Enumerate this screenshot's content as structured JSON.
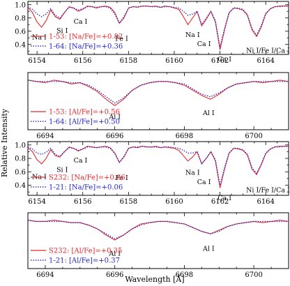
{
  "figure": {
    "ylabel": "Relative Intensity",
    "xlabel": "Wavelength [Å]"
  },
  "colors": {
    "red": "#e8282d",
    "blue": "#2424c8",
    "axis": "#000000"
  },
  "chart_data": [
    {
      "type": "line",
      "xlim": [
        6153.6,
        6165.0
      ],
      "ylim": [
        0.25,
        1.05
      ],
      "xticks": [
        6154,
        6156,
        6158,
        6160,
        6162,
        6164
      ],
      "yticks": [
        0.4,
        0.6,
        0.8,
        1.0
      ],
      "line_labels": [
        {
          "text": "Na I",
          "x": 6154.1,
          "y": 0.58
        },
        {
          "text": "Si I",
          "x": 6155.1,
          "y": 0.68
        },
        {
          "text": "Ca I",
          "x": 6155.9,
          "y": 0.82
        },
        {
          "text": "Fe I",
          "x": 6157.7,
          "y": 0.56
        },
        {
          "text": "Na I",
          "x": 6160.8,
          "y": 0.62
        },
        {
          "text": "Ca I",
          "x": 6161.3,
          "y": 0.48
        },
        {
          "text": "Ca I",
          "x": 6162.2,
          "y": 0.25
        },
        {
          "text": "Ni I/Fe I/Ca I",
          "x": 6164.1,
          "y": 0.38
        }
      ],
      "legend": [
        {
          "label": "1-53: [Na/Fe]=+0.82",
          "color": "red",
          "style": "solid"
        },
        {
          "label": "1-64: [Na/Fe]=+0.36",
          "color": "blue",
          "style": "dotted"
        }
      ],
      "series": [
        {
          "color": "red",
          "style": "solid",
          "x": [
            6153.6,
            6153.8,
            6154.0,
            6154.2,
            6154.4,
            6154.6,
            6154.8,
            6155.0,
            6155.2,
            6155.4,
            6155.6,
            6155.8,
            6156.0,
            6156.2,
            6156.4,
            6156.6,
            6156.8,
            6157.0,
            6157.2,
            6157.4,
            6157.6,
            6157.8,
            6158.0,
            6158.2,
            6158.4,
            6158.6,
            6158.8,
            6159.0,
            6159.2,
            6159.4,
            6159.6,
            6159.8,
            6160.0,
            6160.2,
            6160.4,
            6160.6,
            6160.8,
            6161.0,
            6161.2,
            6161.4,
            6161.6,
            6161.8,
            6162.0,
            6162.2,
            6162.4,
            6162.6,
            6162.8,
            6163.0,
            6163.2,
            6163.4,
            6163.6,
            6163.8,
            6164.0,
            6164.2,
            6164.4,
            6164.6,
            6164.8,
            6165.0
          ],
          "y": [
            0.96,
            0.88,
            0.74,
            0.66,
            0.76,
            0.92,
            0.82,
            0.78,
            0.88,
            0.97,
            0.95,
            0.9,
            0.93,
            0.98,
            0.97,
            0.95,
            0.97,
            0.98,
            0.96,
            0.88,
            0.72,
            0.8,
            0.95,
            0.97,
            0.96,
            0.98,
            0.98,
            0.97,
            0.98,
            0.96,
            0.98,
            0.97,
            0.95,
            0.93,
            0.82,
            0.7,
            0.8,
            0.9,
            0.68,
            0.78,
            0.9,
            0.74,
            0.32,
            0.62,
            0.88,
            0.95,
            0.94,
            0.92,
            0.84,
            0.62,
            0.52,
            0.66,
            0.86,
            0.94,
            0.97,
            0.98,
            0.98,
            0.98
          ]
        },
        {
          "color": "blue",
          "style": "dotted",
          "x": [
            6153.6,
            6153.8,
            6154.0,
            6154.2,
            6154.4,
            6154.6,
            6154.8,
            6155.0,
            6155.2,
            6155.4,
            6155.6,
            6155.8,
            6156.0,
            6156.2,
            6156.4,
            6156.6,
            6156.8,
            6157.0,
            6157.2,
            6157.4,
            6157.6,
            6157.8,
            6158.0,
            6158.2,
            6158.4,
            6158.6,
            6158.8,
            6159.0,
            6159.2,
            6159.4,
            6159.6,
            6159.8,
            6160.0,
            6160.2,
            6160.4,
            6160.6,
            6160.8,
            6161.0,
            6161.2,
            6161.4,
            6161.6,
            6161.8,
            6162.0,
            6162.2,
            6162.4,
            6162.6,
            6162.8,
            6163.0,
            6163.2,
            6163.4,
            6163.6,
            6163.8,
            6164.0,
            6164.2,
            6164.4,
            6164.6,
            6164.8,
            6165.0
          ],
          "y": [
            0.97,
            0.93,
            0.86,
            0.82,
            0.86,
            0.94,
            0.84,
            0.8,
            0.88,
            0.96,
            0.95,
            0.92,
            0.94,
            0.97,
            0.97,
            0.96,
            0.97,
            0.97,
            0.95,
            0.86,
            0.72,
            0.82,
            0.95,
            0.97,
            0.97,
            0.98,
            0.98,
            0.97,
            0.97,
            0.96,
            0.97,
            0.97,
            0.96,
            0.95,
            0.9,
            0.84,
            0.86,
            0.9,
            0.7,
            0.8,
            0.9,
            0.76,
            0.36,
            0.64,
            0.88,
            0.95,
            0.95,
            0.93,
            0.85,
            0.64,
            0.54,
            0.68,
            0.87,
            0.94,
            0.97,
            0.97,
            0.98,
            0.98
          ]
        }
      ]
    },
    {
      "type": "line",
      "xlim": [
        6693.5,
        6701.0
      ],
      "ylim": [
        0.6,
        1.05
      ],
      "xticks": [
        6694,
        6696,
        6698,
        6700
      ],
      "yticks": [],
      "line_labels": [
        {
          "text": "Al I",
          "x": 6696.0,
          "y": 0.74
        },
        {
          "text": "Al I",
          "x": 6698.7,
          "y": 0.77
        }
      ],
      "legend": [
        {
          "label": "1-53: [Al/Fe]=+0.56",
          "color": "red",
          "style": "solid"
        },
        {
          "label": "1-64: [Al/Fe]=+0.50",
          "color": "blue",
          "style": "dotted"
        }
      ],
      "series": [
        {
          "color": "red",
          "style": "solid",
          "x": [
            6693.5,
            6693.75,
            6694.0,
            6694.25,
            6694.5,
            6694.75,
            6695.0,
            6695.25,
            6695.5,
            6695.75,
            6696.0,
            6696.25,
            6696.5,
            6696.75,
            6697.0,
            6697.25,
            6697.5,
            6697.75,
            6698.0,
            6698.25,
            6698.5,
            6698.75,
            6699.0,
            6699.25,
            6699.5,
            6699.75,
            6700.0,
            6700.25,
            6700.5,
            6700.75,
            6701.0
          ],
          "y": [
            0.99,
            0.98,
            0.97,
            0.99,
            0.98,
            0.96,
            0.97,
            0.94,
            0.9,
            0.84,
            0.79,
            0.84,
            0.91,
            0.95,
            0.97,
            0.98,
            0.98,
            0.97,
            0.95,
            0.91,
            0.87,
            0.84,
            0.88,
            0.93,
            0.96,
            0.97,
            0.98,
            0.97,
            0.98,
            0.99,
            0.98
          ]
        },
        {
          "color": "blue",
          "style": "dotted",
          "x": [
            6693.5,
            6693.75,
            6694.0,
            6694.25,
            6694.5,
            6694.75,
            6695.0,
            6695.25,
            6695.5,
            6695.75,
            6696.0,
            6696.25,
            6696.5,
            6696.75,
            6697.0,
            6697.25,
            6697.5,
            6697.75,
            6698.0,
            6698.25,
            6698.5,
            6698.75,
            6699.0,
            6699.25,
            6699.5,
            6699.75,
            6700.0,
            6700.25,
            6700.5,
            6700.75,
            6701.0
          ],
          "y": [
            0.99,
            0.98,
            0.98,
            0.98,
            0.98,
            0.97,
            0.97,
            0.95,
            0.91,
            0.86,
            0.81,
            0.85,
            0.91,
            0.95,
            0.97,
            0.98,
            0.98,
            0.97,
            0.96,
            0.92,
            0.88,
            0.86,
            0.89,
            0.93,
            0.96,
            0.97,
            0.98,
            0.98,
            0.98,
            0.98,
            0.98
          ]
        }
      ]
    },
    {
      "type": "line",
      "xlim": [
        6153.6,
        6165.0
      ],
      "ylim": [
        0.25,
        1.05
      ],
      "xticks": [
        6154,
        6156,
        6158,
        6160,
        6162,
        6164
      ],
      "yticks": [
        0.4,
        0.6,
        0.8,
        1.0
      ],
      "line_labels": [
        {
          "text": "Na I",
          "x": 6154.1,
          "y": 0.6
        },
        {
          "text": "Si I",
          "x": 6155.1,
          "y": 0.7
        },
        {
          "text": "Ca I",
          "x": 6155.9,
          "y": 0.84
        },
        {
          "text": "Fe I",
          "x": 6157.7,
          "y": 0.58
        },
        {
          "text": "Na I",
          "x": 6160.8,
          "y": 0.66
        },
        {
          "text": "Ca I",
          "x": 6161.3,
          "y": 0.52
        },
        {
          "text": "Ca I",
          "x": 6162.2,
          "y": 0.28
        },
        {
          "text": "Ni I/Fe I/Ca I",
          "x": 6164.1,
          "y": 0.4
        }
      ],
      "legend": [
        {
          "label": "S232: [Na/Fe]=+0.66",
          "color": "red",
          "style": "solid"
        },
        {
          "label": "1-21: [Na/Fe]=+0.06",
          "color": "blue",
          "style": "dotted"
        }
      ],
      "series": [
        {
          "color": "red",
          "style": "solid",
          "x": [
            6153.6,
            6153.8,
            6154.0,
            6154.2,
            6154.4,
            6154.6,
            6154.8,
            6155.0,
            6155.2,
            6155.4,
            6155.6,
            6155.8,
            6156.0,
            6156.2,
            6156.4,
            6156.6,
            6156.8,
            6157.0,
            6157.2,
            6157.4,
            6157.6,
            6157.8,
            6158.0,
            6158.2,
            6158.4,
            6158.6,
            6158.8,
            6159.0,
            6159.2,
            6159.4,
            6159.6,
            6159.8,
            6160.0,
            6160.2,
            6160.4,
            6160.6,
            6160.8,
            6161.0,
            6161.2,
            6161.4,
            6161.6,
            6161.8,
            6162.0,
            6162.2,
            6162.4,
            6162.6,
            6162.8,
            6163.0,
            6163.2,
            6163.4,
            6163.6,
            6163.8,
            6164.0,
            6164.2,
            6164.4,
            6164.6,
            6164.8,
            6165.0
          ],
          "y": [
            0.96,
            0.9,
            0.78,
            0.72,
            0.8,
            0.93,
            0.84,
            0.82,
            0.9,
            0.97,
            0.95,
            0.91,
            0.94,
            0.98,
            0.97,
            0.96,
            0.97,
            0.98,
            0.96,
            0.88,
            0.74,
            0.82,
            0.95,
            0.97,
            0.96,
            0.98,
            0.97,
            0.97,
            0.98,
            0.96,
            0.97,
            0.96,
            0.95,
            0.92,
            0.84,
            0.76,
            0.82,
            0.9,
            0.72,
            0.8,
            0.9,
            0.76,
            0.36,
            0.64,
            0.88,
            0.95,
            0.94,
            0.92,
            0.85,
            0.64,
            0.56,
            0.7,
            0.87,
            0.94,
            0.97,
            0.98,
            0.98,
            0.98
          ]
        },
        {
          "color": "blue",
          "style": "dotted",
          "x": [
            6153.6,
            6153.8,
            6154.0,
            6154.2,
            6154.4,
            6154.6,
            6154.8,
            6155.0,
            6155.2,
            6155.4,
            6155.6,
            6155.8,
            6156.0,
            6156.2,
            6156.4,
            6156.6,
            6156.8,
            6157.0,
            6157.2,
            6157.4,
            6157.6,
            6157.8,
            6158.0,
            6158.2,
            6158.4,
            6158.6,
            6158.8,
            6159.0,
            6159.2,
            6159.4,
            6159.6,
            6159.8,
            6160.0,
            6160.2,
            6160.4,
            6160.6,
            6160.8,
            6161.0,
            6161.2,
            6161.4,
            6161.6,
            6161.8,
            6162.0,
            6162.2,
            6162.4,
            6162.6,
            6162.8,
            6163.0,
            6163.2,
            6163.4,
            6163.6,
            6163.8,
            6164.0,
            6164.2,
            6164.4,
            6164.6,
            6164.8,
            6165.0
          ],
          "y": [
            0.97,
            0.94,
            0.88,
            0.86,
            0.89,
            0.95,
            0.86,
            0.83,
            0.9,
            0.96,
            0.95,
            0.92,
            0.94,
            0.97,
            0.97,
            0.96,
            0.97,
            0.97,
            0.95,
            0.87,
            0.74,
            0.83,
            0.95,
            0.97,
            0.97,
            0.98,
            0.97,
            0.97,
            0.97,
            0.96,
            0.97,
            0.97,
            0.96,
            0.95,
            0.92,
            0.88,
            0.88,
            0.9,
            0.72,
            0.8,
            0.9,
            0.78,
            0.4,
            0.66,
            0.88,
            0.95,
            0.95,
            0.93,
            0.86,
            0.66,
            0.58,
            0.71,
            0.88,
            0.94,
            0.97,
            0.97,
            0.98,
            0.98
          ]
        }
      ]
    },
    {
      "type": "line",
      "xlim": [
        6693.5,
        6701.0
      ],
      "ylim": [
        0.6,
        1.05
      ],
      "xticks": [
        6694,
        6696,
        6698,
        6700
      ],
      "yticks": [],
      "line_labels": [
        {
          "text": "Al I",
          "x": 6696.0,
          "y": 0.76
        },
        {
          "text": "Al I",
          "x": 6698.7,
          "y": 0.8
        }
      ],
      "legend": [
        {
          "label": "S232: [Al/Fe]=+0.35",
          "color": "red",
          "style": "solid"
        },
        {
          "label": "1-21: [Al/Fe]=+0.37",
          "color": "blue",
          "style": "dotted"
        }
      ],
      "series": [
        {
          "color": "red",
          "style": "solid",
          "x": [
            6693.5,
            6693.75,
            6694.0,
            6694.25,
            6694.5,
            6694.75,
            6695.0,
            6695.25,
            6695.5,
            6695.75,
            6696.0,
            6696.25,
            6696.5,
            6696.75,
            6697.0,
            6697.25,
            6697.5,
            6697.75,
            6698.0,
            6698.25,
            6698.5,
            6698.75,
            6699.0,
            6699.25,
            6699.5,
            6699.75,
            6700.0,
            6700.25,
            6700.5,
            6700.75,
            6701.0
          ],
          "y": [
            0.99,
            0.98,
            0.98,
            0.99,
            0.98,
            0.97,
            0.97,
            0.95,
            0.92,
            0.87,
            0.83,
            0.87,
            0.92,
            0.96,
            0.97,
            0.98,
            0.98,
            0.97,
            0.96,
            0.93,
            0.9,
            0.88,
            0.91,
            0.94,
            0.96,
            0.97,
            0.98,
            0.97,
            0.98,
            0.99,
            0.98
          ]
        },
        {
          "color": "blue",
          "style": "dotted",
          "x": [
            6693.5,
            6693.75,
            6694.0,
            6694.25,
            6694.5,
            6694.75,
            6695.0,
            6695.25,
            6695.5,
            6695.75,
            6696.0,
            6696.25,
            6696.5,
            6696.75,
            6697.0,
            6697.25,
            6697.5,
            6697.75,
            6698.0,
            6698.25,
            6698.5,
            6698.75,
            6699.0,
            6699.25,
            6699.5,
            6699.75,
            6700.0,
            6700.25,
            6700.5,
            6700.75,
            6701.0
          ],
          "y": [
            0.99,
            0.98,
            0.98,
            0.98,
            0.98,
            0.97,
            0.97,
            0.95,
            0.92,
            0.88,
            0.84,
            0.87,
            0.92,
            0.95,
            0.97,
            0.98,
            0.98,
            0.97,
            0.96,
            0.93,
            0.9,
            0.88,
            0.9,
            0.94,
            0.96,
            0.97,
            0.98,
            0.98,
            0.98,
            0.98,
            0.98
          ]
        }
      ]
    }
  ]
}
